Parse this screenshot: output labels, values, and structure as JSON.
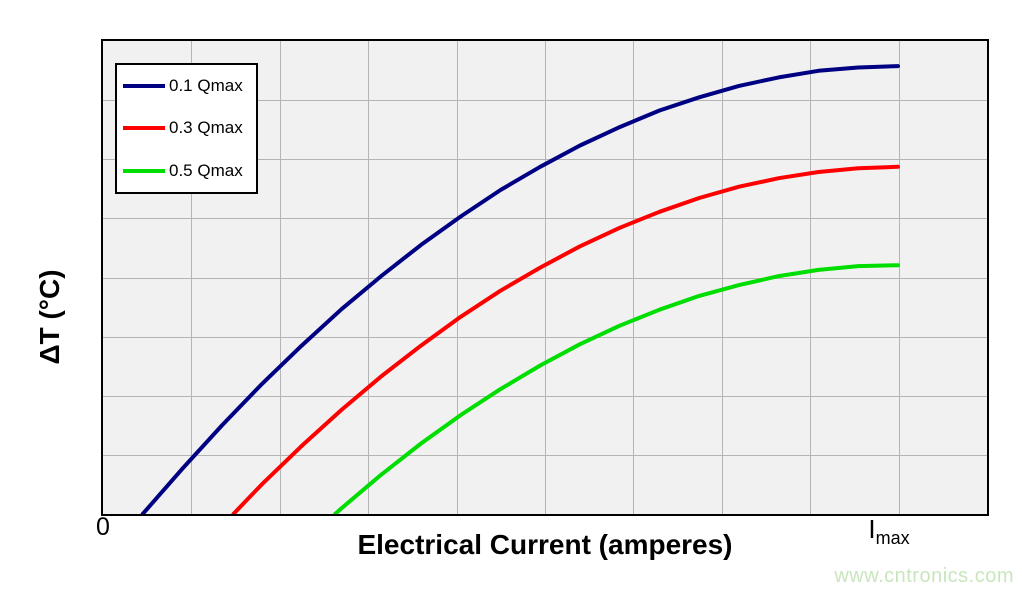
{
  "chart_data": {
    "type": "line",
    "title": "",
    "xlabel": "Electrical Current (amperes)",
    "ylabel": "ΔT (°C)",
    "x_axis": {
      "min": 0,
      "max": 1.112,
      "unit": "I/Imax",
      "numeric_labels": false
    },
    "y_axis": {
      "min": 0,
      "max": 1,
      "unit": "relative ΔT (no numeric scale shown)",
      "numeric_labels": false
    },
    "x_ticks": [
      {
        "label": "0",
        "x": 0
      },
      {
        "label": "Imax",
        "main": "I",
        "sub": "max",
        "x": 1
      }
    ],
    "grid": {
      "show": true,
      "columns": 10,
      "rows": 8,
      "line_color": "#b4b4b4",
      "plot_background": "#f1f1f1",
      "border_color": "#000000"
    },
    "legend": {
      "position": "top-left",
      "background": "#ffffff",
      "border_color": "#000000"
    },
    "series": [
      {
        "name": "0.1 Qmax",
        "color": "#000082",
        "stroke_width": 4,
        "points": [
          [
            0.05,
            0
          ],
          [
            0.1,
            0.096
          ],
          [
            0.15,
            0.188
          ],
          [
            0.2,
            0.275
          ],
          [
            0.25,
            0.356
          ],
          [
            0.3,
            0.433
          ],
          [
            0.35,
            0.503
          ],
          [
            0.4,
            0.569
          ],
          [
            0.45,
            0.629
          ],
          [
            0.5,
            0.685
          ],
          [
            0.55,
            0.734
          ],
          [
            0.6,
            0.779
          ],
          [
            0.65,
            0.818
          ],
          [
            0.7,
            0.853
          ],
          [
            0.75,
            0.881
          ],
          [
            0.8,
            0.905
          ],
          [
            0.85,
            0.923
          ],
          [
            0.9,
            0.937
          ],
          [
            0.95,
            0.944
          ],
          [
            1,
            0.947
          ]
        ]
      },
      {
        "name": "0.3 Qmax",
        "color": "#fe0000",
        "stroke_width": 4,
        "points": [
          [
            0.164,
            0
          ],
          [
            0.2,
            0.063
          ],
          [
            0.25,
            0.144
          ],
          [
            0.3,
            0.22
          ],
          [
            0.35,
            0.291
          ],
          [
            0.4,
            0.356
          ],
          [
            0.45,
            0.417
          ],
          [
            0.5,
            0.472
          ],
          [
            0.55,
            0.521
          ],
          [
            0.6,
            0.566
          ],
          [
            0.65,
            0.605
          ],
          [
            0.7,
            0.639
          ],
          [
            0.75,
            0.668
          ],
          [
            0.8,
            0.692
          ],
          [
            0.85,
            0.71
          ],
          [
            0.9,
            0.723
          ],
          [
            0.95,
            0.731
          ],
          [
            1,
            0.734
          ]
        ]
      },
      {
        "name": "0.5 Qmax",
        "color": "#00dd00",
        "stroke_width": 4,
        "points": [
          [
            0.292,
            0
          ],
          [
            0.3,
            0.012
          ],
          [
            0.35,
            0.083
          ],
          [
            0.4,
            0.149
          ],
          [
            0.45,
            0.209
          ],
          [
            0.5,
            0.264
          ],
          [
            0.55,
            0.314
          ],
          [
            0.6,
            0.359
          ],
          [
            0.65,
            0.398
          ],
          [
            0.7,
            0.432
          ],
          [
            0.75,
            0.461
          ],
          [
            0.8,
            0.484
          ],
          [
            0.85,
            0.503
          ],
          [
            0.9,
            0.516
          ],
          [
            0.95,
            0.524
          ],
          [
            1,
            0.526
          ]
        ]
      }
    ]
  },
  "watermark": {
    "text": "www.cntronics.com",
    "color": "#c8e6bd"
  }
}
